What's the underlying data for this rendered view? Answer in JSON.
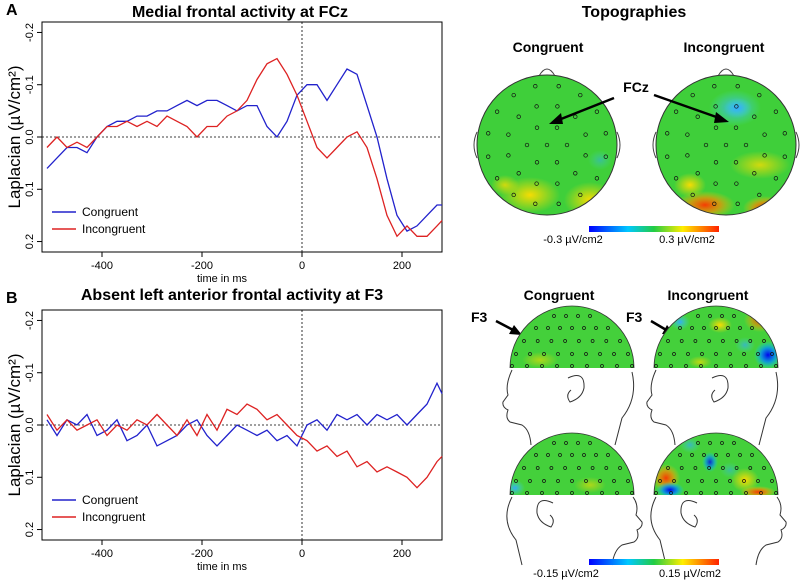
{
  "panelA": {
    "letter": "A",
    "title": "Medial frontal activity at FCz",
    "chart_data": {
      "type": "line",
      "title": "Medial frontal activity at FCz",
      "xlabel": "time in ms",
      "ylabel": "Laplacian (µV/cm²)",
      "xlim": [
        -520,
        280
      ],
      "ylim": [
        -0.22,
        0.22
      ],
      "y_inverted": true,
      "x_ticks": [
        -400,
        -200,
        0,
        200
      ],
      "x_tick_labels": [
        "-400",
        "-200",
        "0",
        "200"
      ],
      "y_ticks": [
        -0.2,
        -0.1,
        0.0,
        0.1,
        0.2
      ],
      "y_tick_labels": [
        "-0.2",
        "-0.1",
        "0.0",
        "0.1",
        "0.2"
      ],
      "grid": false,
      "reference_lines": {
        "x": 0,
        "y": 0
      },
      "legend": "bottom-left",
      "series": [
        {
          "name": "Congruent",
          "color": "#2222cc",
          "x": [
            -510,
            -490,
            -470,
            -450,
            -430,
            -410,
            -390,
            -370,
            -350,
            -330,
            -310,
            -290,
            -270,
            -250,
            -230,
            -210,
            -190,
            -170,
            -150,
            -130,
            -110,
            -90,
            -70,
            -50,
            -30,
            -10,
            10,
            30,
            50,
            70,
            90,
            110,
            130,
            150,
            170,
            190,
            210,
            230,
            250,
            270,
            280
          ],
          "y": [
            0.06,
            0.04,
            0.02,
            0.02,
            0.03,
            0.0,
            -0.02,
            -0.03,
            -0.03,
            -0.04,
            -0.04,
            -0.05,
            -0.05,
            -0.06,
            -0.07,
            -0.06,
            -0.07,
            -0.07,
            -0.06,
            -0.05,
            -0.06,
            -0.06,
            -0.02,
            0.0,
            -0.03,
            -0.08,
            -0.1,
            -0.1,
            -0.07,
            -0.1,
            -0.13,
            -0.12,
            -0.06,
            0.0,
            0.08,
            0.15,
            0.18,
            0.17,
            0.15,
            0.13,
            0.13
          ]
        },
        {
          "name": "Incongruent",
          "color": "#dd2222",
          "x": [
            -510,
            -490,
            -470,
            -450,
            -430,
            -410,
            -390,
            -370,
            -350,
            -330,
            -310,
            -290,
            -270,
            -250,
            -230,
            -210,
            -190,
            -170,
            -150,
            -130,
            -110,
            -90,
            -70,
            -50,
            -30,
            -10,
            10,
            30,
            50,
            70,
            90,
            110,
            130,
            150,
            170,
            190,
            210,
            230,
            250,
            270,
            280
          ],
          "y": [
            0.02,
            0.0,
            0.02,
            0.01,
            0.02,
            0.0,
            -0.02,
            -0.02,
            -0.03,
            -0.02,
            -0.03,
            -0.02,
            -0.04,
            -0.03,
            -0.02,
            0.0,
            -0.02,
            -0.02,
            -0.04,
            -0.05,
            -0.07,
            -0.11,
            -0.14,
            -0.15,
            -0.12,
            -0.08,
            -0.03,
            0.02,
            0.04,
            0.02,
            0.0,
            -0.01,
            0.02,
            0.08,
            0.15,
            0.19,
            0.17,
            0.19,
            0.19,
            0.17,
            0.16
          ]
        }
      ]
    }
  },
  "panelB": {
    "letter": "B",
    "title": "Absent left anterior frontal activity at F3",
    "chart_data": {
      "type": "line",
      "title": "Absent left anterior frontal activity at F3",
      "xlabel": "time in ms",
      "ylabel": "Laplacian (µV/cm²)",
      "xlim": [
        -520,
        280
      ],
      "ylim": [
        -0.22,
        0.22
      ],
      "y_inverted": true,
      "x_ticks": [
        -400,
        -200,
        0,
        200
      ],
      "x_tick_labels": [
        "-400",
        "-200",
        "0",
        "200"
      ],
      "y_ticks": [
        -0.2,
        -0.1,
        0.0,
        0.1,
        0.2
      ],
      "y_tick_labels": [
        "-0.2",
        "-0.1",
        "0.0",
        "0.1",
        "0.2"
      ],
      "grid": false,
      "reference_lines": {
        "x": 0,
        "y": 0
      },
      "legend": "bottom-left",
      "series": [
        {
          "name": "Congruent",
          "color": "#2222cc",
          "x": [
            -510,
            -490,
            -470,
            -450,
            -430,
            -410,
            -390,
            -370,
            -350,
            -330,
            -310,
            -290,
            -270,
            -250,
            -230,
            -210,
            -190,
            -170,
            -150,
            -130,
            -110,
            -90,
            -70,
            -50,
            -30,
            -10,
            10,
            30,
            50,
            70,
            90,
            110,
            130,
            150,
            170,
            190,
            210,
            230,
            250,
            270,
            280
          ],
          "y": [
            -0.01,
            0.02,
            -0.01,
            0.0,
            -0.02,
            0.02,
            0.01,
            -0.01,
            0.03,
            0.02,
            0.0,
            0.04,
            0.03,
            0.02,
            0.0,
            -0.01,
            0.02,
            0.04,
            0.02,
            0.0,
            0.01,
            0.02,
            0.01,
            0.03,
            0.02,
            0.04,
            0.0,
            -0.01,
            0.01,
            -0.02,
            -0.01,
            -0.02,
            0.0,
            -0.02,
            -0.01,
            -0.02,
            0.0,
            -0.02,
            -0.04,
            -0.08,
            -0.06
          ]
        },
        {
          "name": "Incongruent",
          "color": "#dd2222",
          "x": [
            -510,
            -490,
            -470,
            -450,
            -430,
            -410,
            -390,
            -370,
            -350,
            -330,
            -310,
            -290,
            -270,
            -250,
            -230,
            -210,
            -190,
            -170,
            -150,
            -130,
            -110,
            -90,
            -70,
            -50,
            -30,
            -10,
            10,
            30,
            50,
            70,
            90,
            110,
            130,
            150,
            170,
            190,
            210,
            230,
            250,
            270,
            280
          ],
          "y": [
            -0.02,
            0.01,
            -0.01,
            0.01,
            0.0,
            -0.01,
            0.02,
            0.0,
            0.01,
            -0.01,
            0.0,
            -0.02,
            0.0,
            0.02,
            -0.01,
            0.02,
            -0.02,
            0.01,
            -0.03,
            -0.02,
            -0.04,
            -0.03,
            -0.01,
            -0.02,
            0.0,
            0.02,
            0.03,
            0.05,
            0.04,
            0.06,
            0.05,
            0.08,
            0.07,
            0.09,
            0.08,
            0.09,
            0.1,
            0.12,
            0.1,
            0.07,
            0.06
          ]
        }
      ]
    }
  },
  "topographies": {
    "title": "Topographies",
    "top_labels": {
      "congruent": "Congruent",
      "incongruent": "Incongruent"
    },
    "top_electrode": "FCz",
    "top_scale": {
      "min_label": "-0.3 µV/cm2",
      "max_label": "0.3 µV/cm2"
    },
    "bottom_labels": {
      "congruent": "Congruent",
      "incongruent": "Incongruent"
    },
    "bottom_electrode": "F3",
    "bottom_scale": {
      "min_label": "-0.15 µV/cm2",
      "max_label": "0.15 µV/cm2"
    },
    "colormap": [
      "#0000ff",
      "#00c8ff",
      "#22cc44",
      "#ffee00",
      "#ff2200"
    ]
  }
}
